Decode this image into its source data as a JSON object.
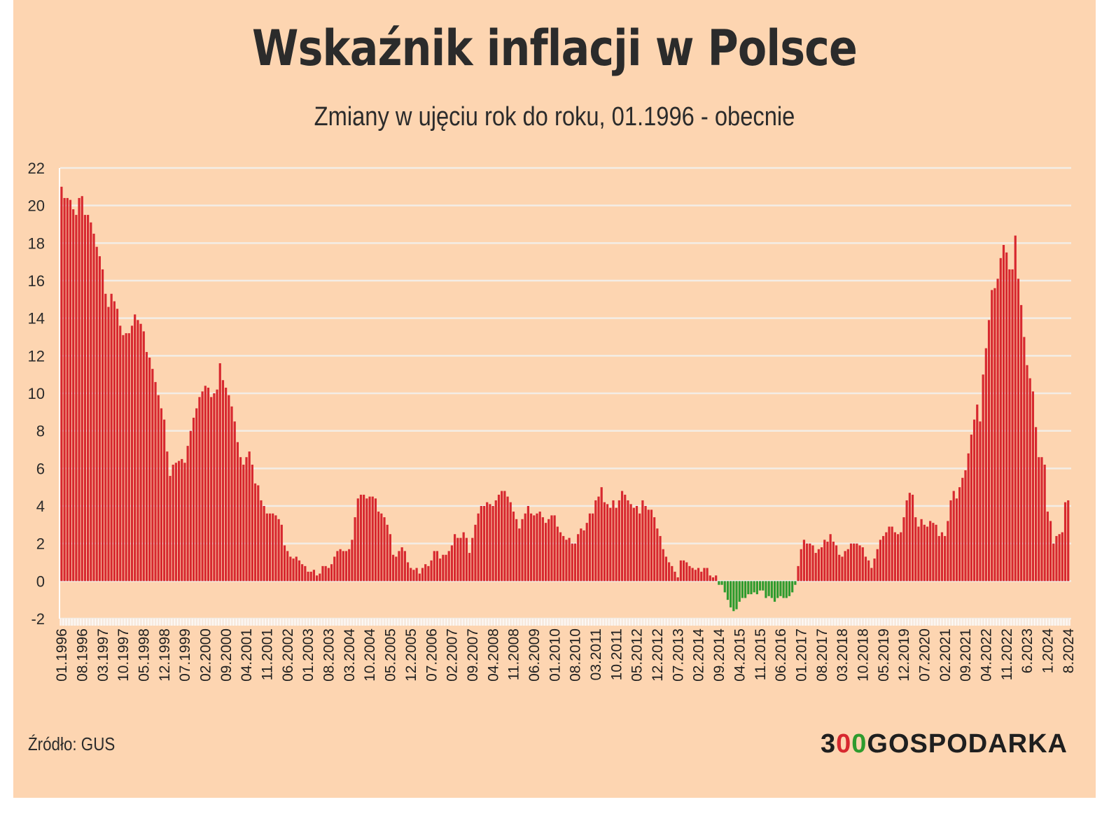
{
  "title": "Wskaźnik inflacji w Polsce",
  "subtitle": "Zmiany w ujęciu rok do roku, 01.1996 - obecnie",
  "source": "Źródło: GUS",
  "logo": {
    "part1": "3",
    "part2": "0",
    "part3": "0",
    "part4": "GOSPODARKA"
  },
  "colors": {
    "background": "#fdd5b1",
    "positive": "#d7282f",
    "negative": "#2e9b2e",
    "grid": "#f3ede6",
    "text": "#2b2b2b"
  },
  "chart_data": {
    "type": "bar",
    "title": "Wskaźnik inflacji w Polsce",
    "subtitle": "Zmiany w ujęciu rok do roku, 01.1996 - obecnie",
    "xlabel": "",
    "ylabel": "",
    "ylim": [
      -2,
      22
    ],
    "yticks": [
      -2,
      0,
      2,
      4,
      6,
      8,
      10,
      12,
      14,
      16,
      18,
      20,
      22
    ],
    "ytick_labels": [
      "-2",
      "0",
      "2",
      "4",
      "6",
      "8",
      "10",
      "12",
      "14",
      "16",
      "18",
      "20",
      "22"
    ],
    "grid": true,
    "legend": "none",
    "start_month": "01.1996",
    "end_month": "08.2024",
    "xtick_labels": [
      "01.1996",
      "08.1996",
      "03.1997",
      "10.1997",
      "05.1998",
      "12.1998",
      "07.1999",
      "02.2000",
      "09.2000",
      "04.2001",
      "11.2001",
      "06.2002",
      "01.2003",
      "08.2003",
      "03.2004",
      "10.2004",
      "05.2005",
      "12.2005",
      "07.2006",
      "02.2007",
      "09.2007",
      "04.2008",
      "11.2008",
      "06.2009",
      "01.2010",
      "08.2010",
      "03.2011",
      "10.2011",
      "05.2012",
      "12.2012",
      "07.2013",
      "02.2014",
      "09.2014",
      "04.2015",
      "11.2015",
      "06.2016",
      "01.2017",
      "08.2017",
      "03.2018",
      "10.2018",
      "05.2019",
      "12.2019",
      "07.2020",
      "02.2021",
      "09.2021",
      "04.2022",
      "11.2022",
      "6.2023",
      "1.2024",
      "8.2024"
    ],
    "values": [
      21.0,
      20.4,
      20.4,
      20.3,
      19.8,
      19.5,
      20.4,
      20.5,
      19.5,
      19.5,
      19.1,
      18.5,
      17.8,
      17.3,
      16.6,
      15.3,
      14.6,
      15.3,
      14.9,
      14.5,
      13.6,
      13.1,
      13.2,
      13.2,
      13.6,
      14.2,
      13.9,
      13.7,
      13.3,
      12.2,
      11.9,
      11.3,
      10.6,
      9.9,
      9.2,
      8.6,
      6.9,
      5.6,
      6.2,
      6.3,
      6.4,
      6.5,
      6.3,
      7.2,
      8.0,
      8.7,
      9.2,
      9.8,
      10.1,
      10.4,
      10.3,
      9.8,
      10.0,
      10.2,
      11.6,
      10.7,
      10.3,
      9.9,
      9.3,
      8.5,
      7.4,
      6.6,
      6.2,
      6.6,
      6.9,
      6.2,
      5.2,
      5.1,
      4.3,
      4.0,
      3.6,
      3.6,
      3.6,
      3.5,
      3.3,
      3.0,
      1.9,
      1.6,
      1.3,
      1.2,
      1.3,
      1.1,
      0.9,
      0.8,
      0.5,
      0.5,
      0.6,
      0.3,
      0.4,
      0.8,
      0.8,
      0.7,
      0.9,
      1.3,
      1.6,
      1.7,
      1.6,
      1.6,
      1.7,
      2.2,
      3.4,
      4.4,
      4.6,
      4.6,
      4.4,
      4.5,
      4.5,
      4.4,
      3.7,
      3.6,
      3.4,
      3.0,
      2.5,
      1.4,
      1.3,
      1.6,
      1.8,
      1.6,
      1.0,
      0.7,
      0.6,
      0.7,
      0.4,
      0.7,
      0.9,
      0.8,
      1.1,
      1.6,
      1.6,
      1.2,
      1.4,
      1.4,
      1.6,
      1.9,
      2.5,
      2.3,
      2.3,
      2.6,
      2.3,
      1.5,
      2.3,
      3.0,
      3.6,
      4.0,
      4.0,
      4.2,
      4.1,
      4.0,
      4.3,
      4.6,
      4.8,
      4.8,
      4.5,
      4.2,
      3.7,
      3.3,
      2.8,
      3.3,
      3.6,
      4.0,
      3.6,
      3.5,
      3.6,
      3.7,
      3.4,
      3.1,
      3.3,
      3.5,
      3.5,
      2.9,
      2.6,
      2.4,
      2.2,
      2.3,
      2.0,
      2.0,
      2.5,
      2.8,
      2.7,
      3.1,
      3.6,
      3.6,
      4.3,
      4.5,
      5.0,
      4.2,
      4.1,
      3.9,
      4.3,
      3.9,
      4.3,
      4.8,
      4.6,
      4.3,
      4.1,
      3.9,
      4.0,
      3.6,
      4.3,
      4.0,
      3.8,
      3.8,
      3.4,
      2.8,
      2.4,
      1.7,
      1.3,
      1.0,
      0.8,
      0.5,
      0.2,
      1.1,
      1.1,
      1.0,
      0.8,
      0.7,
      0.6,
      0.7,
      0.5,
      0.7,
      0.7,
      0.3,
      0.2,
      0.3,
      -0.2,
      -0.2,
      -0.6,
      -1.0,
      -1.4,
      -1.6,
      -1.5,
      -1.1,
      -0.9,
      -0.9,
      -0.7,
      -0.7,
      -0.6,
      -0.7,
      -0.5,
      -0.5,
      -0.9,
      -0.8,
      -0.9,
      -1.1,
      -0.9,
      -0.8,
      -0.9,
      -0.9,
      -0.8,
      -0.6,
      -0.2,
      0.8,
      1.7,
      2.2,
      2.0,
      2.0,
      1.9,
      1.5,
      1.7,
      1.8,
      2.2,
      2.1,
      2.5,
      2.1,
      1.9,
      1.4,
      1.3,
      1.6,
      1.7,
      2.0,
      2.0,
      2.0,
      1.9,
      1.8,
      1.3,
      1.1,
      0.7,
      1.2,
      1.7,
      2.2,
      2.4,
      2.6,
      2.9,
      2.9,
      2.6,
      2.5,
      2.6,
      3.4,
      4.3,
      4.7,
      4.6,
      3.4,
      2.9,
      3.3,
      3.0,
      2.9,
      3.2,
      3.1,
      3.0,
      2.4,
      2.6,
      2.4,
      3.2,
      4.3,
      4.8,
      4.4,
      5.0,
      5.5,
      5.9,
      6.8,
      7.8,
      8.6,
      9.4,
      8.5,
      11.0,
      12.4,
      13.9,
      15.5,
      15.6,
      16.1,
      17.2,
      17.9,
      17.5,
      16.6,
      16.6,
      18.4,
      16.1,
      14.7,
      13.0,
      11.5,
      10.8,
      10.1,
      8.2,
      6.6,
      6.6,
      6.2,
      3.7,
      3.2,
      2.0,
      2.4,
      2.5,
      2.6,
      4.2,
      4.3
    ]
  }
}
